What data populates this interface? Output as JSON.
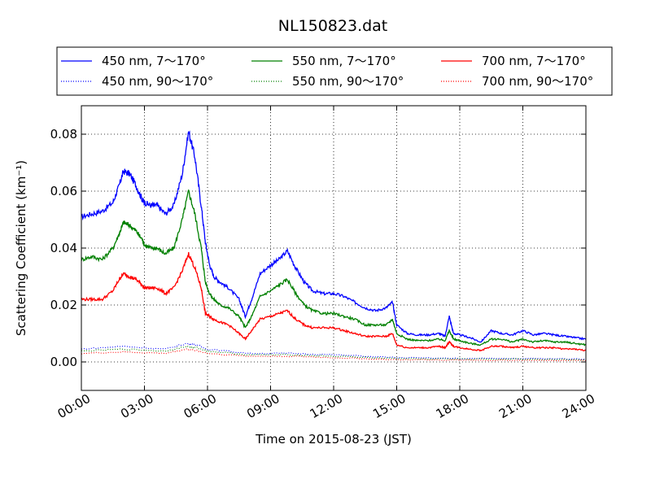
{
  "chart_data": {
    "type": "line",
    "title": "NL150823.dat",
    "xlabel": "Time on 2015-08-23 (JST)",
    "ylabel": "Scattering Coefficient (km⁻¹)",
    "xlim": [
      0,
      24
    ],
    "ylim": [
      -0.01,
      0.09
    ],
    "xticks": [
      0,
      3,
      6,
      9,
      12,
      15,
      18,
      21,
      24
    ],
    "xtick_labels": [
      "00:00",
      "03:00",
      "06:00",
      "09:00",
      "12:00",
      "15:00",
      "18:00",
      "21:00",
      "24:00"
    ],
    "yticks": [
      0.0,
      0.02,
      0.04,
      0.06,
      0.08
    ],
    "ytick_labels": [
      "0.00",
      "0.02",
      "0.04",
      "0.06",
      "0.08"
    ],
    "grid": true,
    "legend_position": "top",
    "x_unit": "hours",
    "series": [
      {
        "name": "450 nm, 7～170°",
        "color": "#0000ff",
        "style": "solid",
        "x": [
          0.0,
          0.5,
          1.0,
          1.5,
          1.8,
          2.0,
          2.3,
          2.6,
          2.9,
          3.0,
          3.3,
          3.6,
          4.0,
          4.4,
          4.8,
          5.1,
          5.4,
          5.7,
          5.9,
          6.1,
          6.3,
          6.6,
          7.0,
          7.5,
          7.8,
          8.1,
          8.5,
          9.0,
          9.4,
          9.8,
          10.2,
          10.6,
          11.0,
          11.5,
          12.0,
          12.5,
          13.0,
          13.5,
          14.0,
          14.5,
          14.8,
          15.0,
          15.5,
          16.0,
          16.5,
          17.0,
          17.3,
          17.5,
          17.7,
          18.0,
          18.5,
          19.0,
          19.5,
          20.0,
          20.5,
          21.0,
          21.5,
          22.0,
          22.5,
          23.0,
          23.5,
          24.0
        ],
        "y": [
          0.051,
          0.052,
          0.053,
          0.056,
          0.062,
          0.067,
          0.066,
          0.062,
          0.057,
          0.056,
          0.055,
          0.055,
          0.052,
          0.055,
          0.066,
          0.081,
          0.072,
          0.055,
          0.042,
          0.034,
          0.03,
          0.028,
          0.026,
          0.022,
          0.016,
          0.022,
          0.031,
          0.034,
          0.036,
          0.039,
          0.033,
          0.028,
          0.025,
          0.024,
          0.024,
          0.023,
          0.021,
          0.019,
          0.018,
          0.019,
          0.021,
          0.013,
          0.01,
          0.0095,
          0.0095,
          0.01,
          0.009,
          0.016,
          0.01,
          0.0095,
          0.0085,
          0.007,
          0.011,
          0.01,
          0.0095,
          0.011,
          0.0095,
          0.01,
          0.0095,
          0.009,
          0.0085,
          0.008
        ]
      },
      {
        "name": "550 nm, 7～170°",
        "color": "#008000",
        "style": "solid",
        "x": [
          0.0,
          0.5,
          1.0,
          1.5,
          1.8,
          2.0,
          2.3,
          2.6,
          2.9,
          3.0,
          3.3,
          3.6,
          4.0,
          4.4,
          4.8,
          5.1,
          5.4,
          5.7,
          5.9,
          6.1,
          6.3,
          6.6,
          7.0,
          7.5,
          7.8,
          8.1,
          8.5,
          9.0,
          9.4,
          9.8,
          10.2,
          10.6,
          11.0,
          11.5,
          12.0,
          12.5,
          13.0,
          13.5,
          14.0,
          14.5,
          14.8,
          15.0,
          15.5,
          16.0,
          16.5,
          17.0,
          17.3,
          17.5,
          17.7,
          18.0,
          18.5,
          19.0,
          19.5,
          20.0,
          20.5,
          21.0,
          21.5,
          22.0,
          22.5,
          23.0,
          23.5,
          24.0
        ],
        "y": [
          0.036,
          0.037,
          0.036,
          0.04,
          0.045,
          0.049,
          0.048,
          0.046,
          0.043,
          0.041,
          0.04,
          0.04,
          0.038,
          0.04,
          0.05,
          0.06,
          0.052,
          0.04,
          0.028,
          0.024,
          0.022,
          0.02,
          0.019,
          0.016,
          0.012,
          0.016,
          0.023,
          0.025,
          0.027,
          0.029,
          0.024,
          0.02,
          0.018,
          0.017,
          0.017,
          0.016,
          0.015,
          0.013,
          0.013,
          0.013,
          0.015,
          0.01,
          0.008,
          0.0075,
          0.0075,
          0.008,
          0.0075,
          0.011,
          0.008,
          0.0075,
          0.0065,
          0.006,
          0.008,
          0.008,
          0.007,
          0.008,
          0.007,
          0.0075,
          0.007,
          0.007,
          0.0065,
          0.006
        ]
      },
      {
        "name": "700 nm, 7～170°",
        "color": "#ff0000",
        "style": "solid",
        "x": [
          0.0,
          0.5,
          1.0,
          1.5,
          1.8,
          2.0,
          2.3,
          2.6,
          2.9,
          3.0,
          3.3,
          3.6,
          4.0,
          4.4,
          4.8,
          5.1,
          5.4,
          5.7,
          5.9,
          6.1,
          6.3,
          6.6,
          7.0,
          7.5,
          7.8,
          8.1,
          8.5,
          9.0,
          9.4,
          9.8,
          10.2,
          10.6,
          11.0,
          11.5,
          12.0,
          12.5,
          13.0,
          13.5,
          14.0,
          14.5,
          14.8,
          15.0,
          15.5,
          16.0,
          16.5,
          17.0,
          17.3,
          17.5,
          17.7,
          18.0,
          18.5,
          19.0,
          19.5,
          20.0,
          20.5,
          21.0,
          21.5,
          22.0,
          22.5,
          23.0,
          23.5,
          24.0
        ],
        "y": [
          0.022,
          0.022,
          0.022,
          0.025,
          0.029,
          0.031,
          0.03,
          0.029,
          0.027,
          0.026,
          0.026,
          0.026,
          0.024,
          0.026,
          0.032,
          0.038,
          0.033,
          0.026,
          0.017,
          0.016,
          0.015,
          0.014,
          0.013,
          0.01,
          0.008,
          0.011,
          0.015,
          0.016,
          0.017,
          0.018,
          0.015,
          0.013,
          0.012,
          0.012,
          0.012,
          0.011,
          0.01,
          0.009,
          0.009,
          0.009,
          0.01,
          0.006,
          0.005,
          0.005,
          0.005,
          0.0055,
          0.005,
          0.007,
          0.0055,
          0.005,
          0.0045,
          0.004,
          0.0055,
          0.0055,
          0.005,
          0.0055,
          0.005,
          0.005,
          0.005,
          0.0045,
          0.0045,
          0.004
        ]
      },
      {
        "name": "450 nm, 90～170°",
        "color": "#0000ff",
        "style": "dotted",
        "x": [
          0,
          2,
          4,
          5,
          5.5,
          6,
          8,
          10,
          12,
          15,
          18,
          21,
          24
        ],
        "y": [
          0.0045,
          0.0055,
          0.0045,
          0.0065,
          0.006,
          0.0045,
          0.003,
          0.003,
          0.0025,
          0.0015,
          0.0012,
          0.0012,
          0.001
        ]
      },
      {
        "name": "550 nm, 90～170°",
        "color": "#008000",
        "style": "dotted",
        "x": [
          0,
          2,
          4,
          5,
          5.5,
          6,
          8,
          10,
          12,
          15,
          18,
          21,
          24
        ],
        "y": [
          0.0038,
          0.0045,
          0.0038,
          0.0055,
          0.005,
          0.0038,
          0.0025,
          0.0025,
          0.002,
          0.0012,
          0.001,
          0.001,
          0.0008
        ]
      },
      {
        "name": "700 nm, 90～170°",
        "color": "#ff0000",
        "style": "dotted",
        "x": [
          0,
          2,
          4,
          5,
          5.5,
          6,
          8,
          10,
          12,
          15,
          18,
          21,
          24
        ],
        "y": [
          0.003,
          0.0035,
          0.003,
          0.0045,
          0.004,
          0.003,
          0.002,
          0.002,
          0.0015,
          0.0008,
          0.0006,
          0.0006,
          0.0005
        ]
      }
    ]
  }
}
